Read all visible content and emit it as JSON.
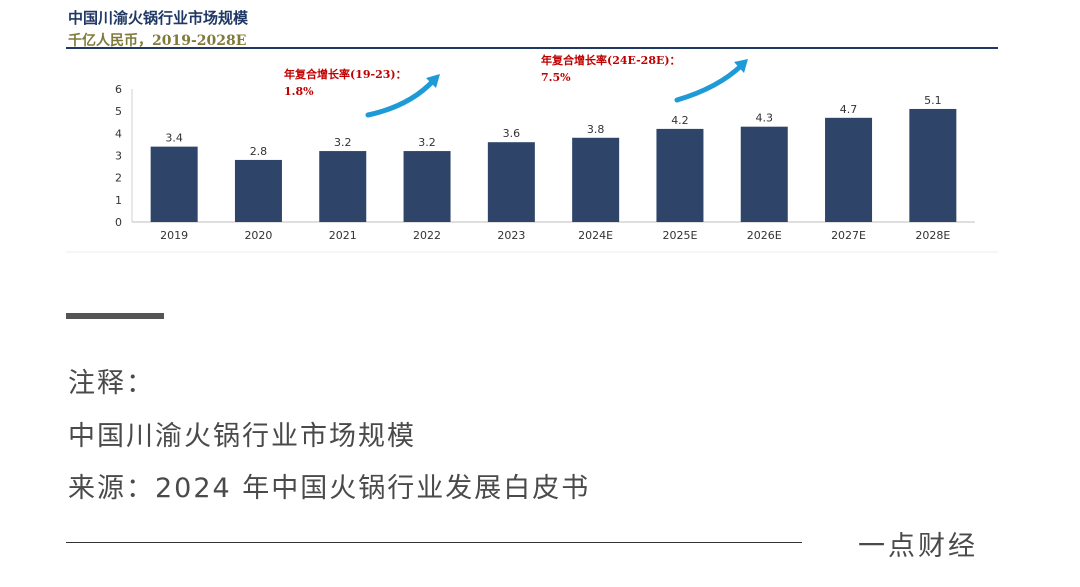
{
  "chart_data": {
    "type": "bar",
    "title": "中国川渝火锅行业市场规模",
    "subtitle": "千亿人民币，2019-2028E",
    "categories": [
      "2019",
      "2020",
      "2021",
      "2022",
      "2023",
      "2024E",
      "2025E",
      "2026E",
      "2027E",
      "2028E"
    ],
    "values": [
      3.4,
      2.8,
      3.2,
      3.2,
      3.6,
      3.8,
      4.2,
      4.3,
      4.7,
      5.1
    ],
    "value_labels": [
      "3.4",
      "2.8",
      "3.2",
      "3.2",
      "3.6",
      "3.8",
      "4.2",
      "4.3",
      "4.7",
      "5.1"
    ],
    "ylim": [
      0,
      6
    ],
    "yticks": [
      0,
      1,
      2,
      3,
      4,
      5,
      6
    ],
    "grid": false,
    "bar_color": "#2e4468",
    "annotations": [
      {
        "label": "年复合增长率(19-23)：",
        "value": "1.8%",
        "color": "#c00000"
      },
      {
        "label": "年复合增长率(24E-28E)：",
        "value": "7.5%",
        "color": "#c00000"
      }
    ],
    "arrow_color": "#1e9ad6"
  },
  "notes": {
    "heading": "注释：",
    "description": "中国川渝火锅行业市场规模",
    "source": "来源：2024 年中国火锅行业发展白皮书"
  },
  "footer": {
    "brand": "一点财经"
  }
}
